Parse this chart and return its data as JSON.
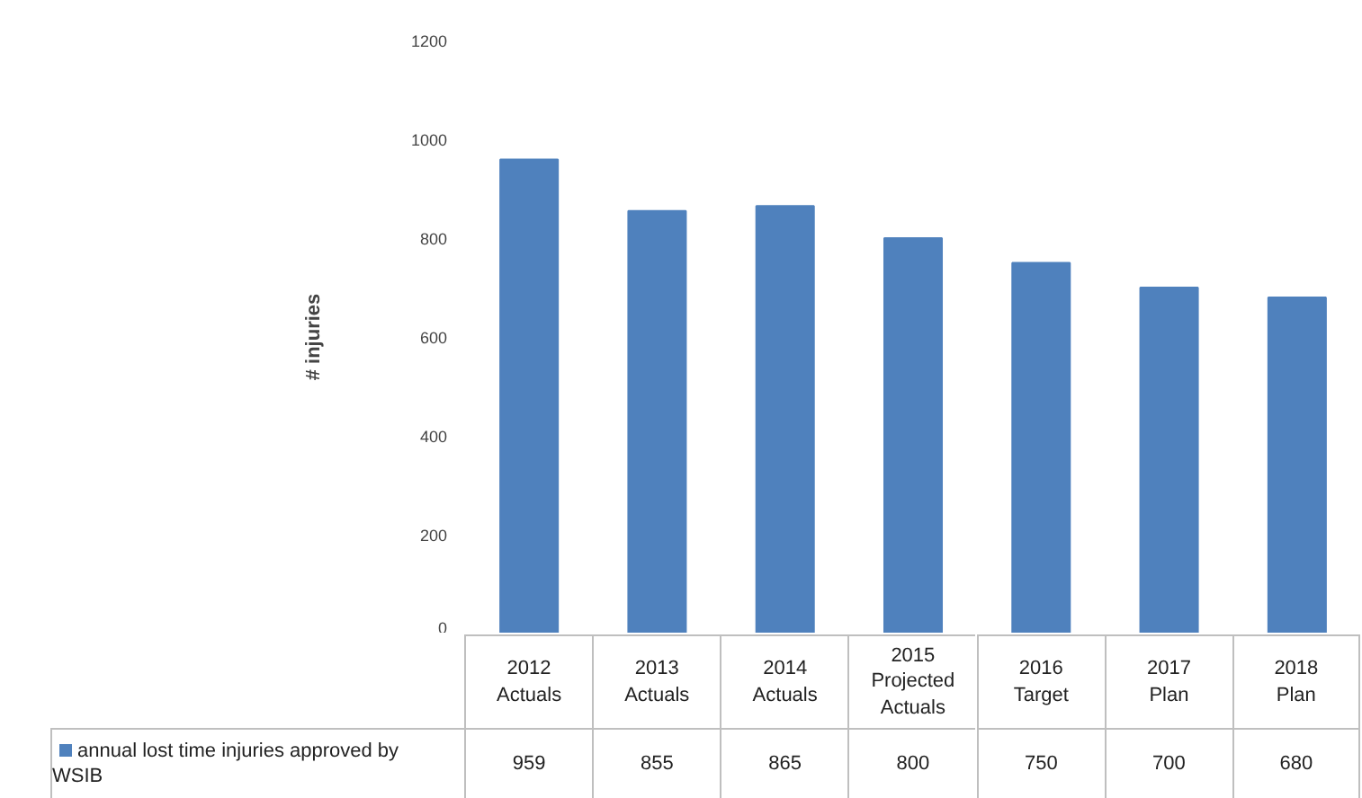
{
  "chart_data": {
    "type": "bar",
    "ylabel": "# injuries",
    "categories": [
      "2012 Actuals",
      "2013 Actuals",
      "2014 Actuals",
      "2015 Projected Actuals",
      "2016 Target",
      "2017 Plan",
      "2018 Plan"
    ],
    "series": [
      {
        "name": "annual lost time injuries approved by WSIB",
        "color": "#4f81bd",
        "values": [
          959,
          855,
          865,
          800,
          750,
          700,
          680
        ]
      }
    ],
    "ylim": [
      0,
      1200
    ],
    "yticks": [
      0,
      200,
      400,
      600,
      800,
      1000,
      1200
    ],
    "grid": false,
    "legend": "bottom",
    "data_labels": true
  }
}
